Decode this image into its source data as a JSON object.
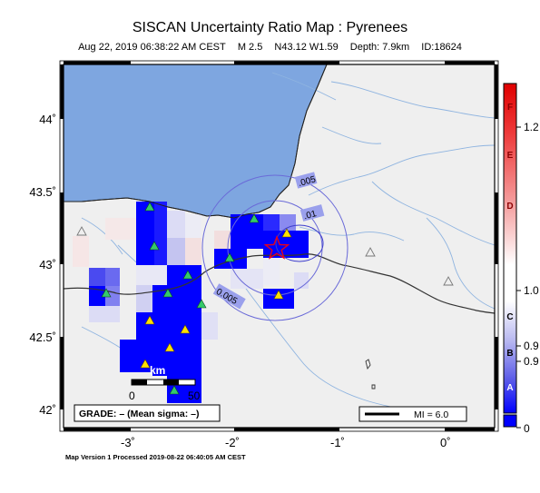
{
  "map": {
    "title": "SISCAN Uncertainty Ratio Map : Pyrenees",
    "event": {
      "datetime": "Aug 22, 2019 06:38:22 AM CEST",
      "magnitude": "M 2.5",
      "location": "N43.12 W1.59",
      "depth": "Depth: 7.9km",
      "id": "ID:18624"
    },
    "x_ticks": [
      "-3˚",
      "-2˚",
      "-1˚",
      "0˚"
    ],
    "y_ticks": [
      "44˚",
      "43.5˚",
      "43˚",
      "42.5˚",
      "42˚"
    ],
    "contour_labels": [
      ".005",
      ".01",
      "0.005"
    ],
    "scale_bar": {
      "unit": "km",
      "start": "0",
      "end": "50"
    },
    "grade_box": "GRADE: – (Mean sigma: –)",
    "mi_legend": "MI = 6.0",
    "footer": "Map Version 1 Processed 2019-08-22 06:40:05 AM CEST",
    "colors": {
      "sea": "#7ea6e0",
      "land": "#efefef",
      "high": "#0000ff",
      "epicenter": "#e8001a"
    }
  },
  "colorbar": {
    "letters": [
      "F",
      "E",
      "D",
      "C",
      "B",
      "A"
    ],
    "values": [
      "1.2",
      "1.0",
      "0.9",
      "0.9",
      "0"
    ]
  }
}
